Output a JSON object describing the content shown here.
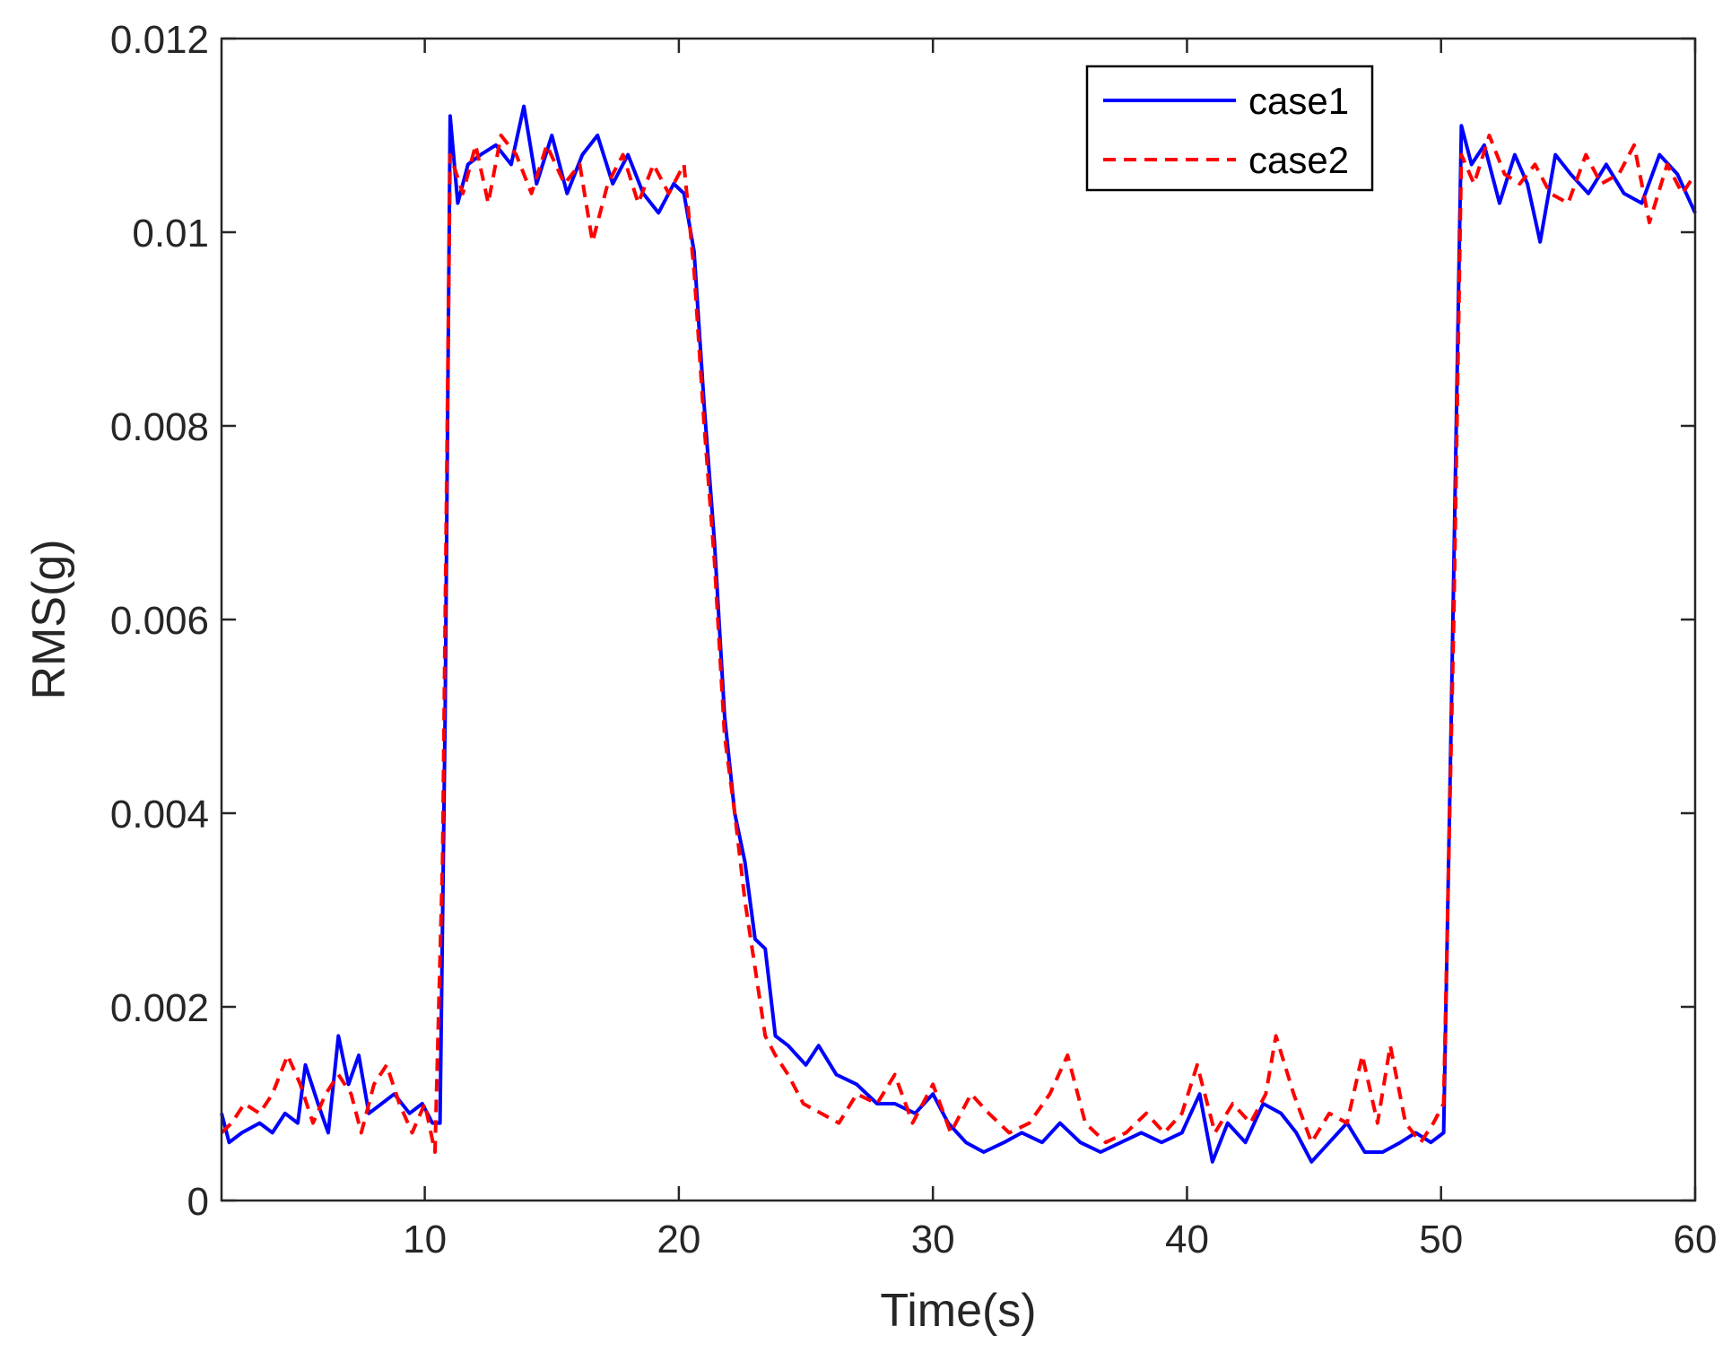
{
  "chart_data": {
    "type": "line",
    "title": "",
    "xlabel": "Time(s)",
    "ylabel": "RMS(g)",
    "xlim": [
      2,
      60
    ],
    "ylim": [
      0,
      0.012
    ],
    "xticks": [
      10,
      20,
      30,
      40,
      50,
      60
    ],
    "yticks": [
      0,
      0.002,
      0.004,
      0.006,
      0.008,
      0.01,
      0.012
    ],
    "xtick_labels": [
      "10",
      "20",
      "30",
      "40",
      "50",
      "60"
    ],
    "ytick_labels": [
      "0",
      "0.002",
      "0.004",
      "0.006",
      "0.008",
      "0.01",
      "0.012"
    ],
    "grid": false,
    "legend_position": "top-right",
    "series": [
      {
        "name": "case1",
        "color": "#0000ff",
        "style": "solid",
        "points": [
          [
            2.0,
            0.0009
          ],
          [
            2.3,
            0.0006
          ],
          [
            2.8,
            0.0007
          ],
          [
            3.5,
            0.0008
          ],
          [
            4.0,
            0.0007
          ],
          [
            4.5,
            0.0009
          ],
          [
            5.0,
            0.0008
          ],
          [
            5.3,
            0.0014
          ],
          [
            5.8,
            0.001
          ],
          [
            6.2,
            0.0007
          ],
          [
            6.6,
            0.0017
          ],
          [
            7.0,
            0.0012
          ],
          [
            7.4,
            0.0015
          ],
          [
            7.8,
            0.0009
          ],
          [
            8.3,
            0.001
          ],
          [
            8.8,
            0.0011
          ],
          [
            9.4,
            0.0009
          ],
          [
            9.9,
            0.001
          ],
          [
            10.3,
            0.0008
          ],
          [
            10.6,
            0.0008
          ],
          [
            10.8,
            0.005
          ],
          [
            11.0,
            0.0112
          ],
          [
            11.3,
            0.0103
          ],
          [
            11.7,
            0.0107
          ],
          [
            12.2,
            0.0108
          ],
          [
            12.8,
            0.0109
          ],
          [
            13.4,
            0.0107
          ],
          [
            13.9,
            0.0113
          ],
          [
            14.4,
            0.0105
          ],
          [
            15.0,
            0.011
          ],
          [
            15.6,
            0.0104
          ],
          [
            16.2,
            0.0108
          ],
          [
            16.8,
            0.011
          ],
          [
            17.4,
            0.0105
          ],
          [
            18.0,
            0.0108
          ],
          [
            18.6,
            0.0104
          ],
          [
            19.2,
            0.0102
          ],
          [
            19.8,
            0.0105
          ],
          [
            20.2,
            0.0104
          ],
          [
            20.6,
            0.0098
          ],
          [
            21.0,
            0.0082
          ],
          [
            21.4,
            0.0068
          ],
          [
            21.8,
            0.005
          ],
          [
            22.2,
            0.004
          ],
          [
            22.6,
            0.0035
          ],
          [
            23.0,
            0.0027
          ],
          [
            23.4,
            0.0026
          ],
          [
            23.8,
            0.0017
          ],
          [
            24.3,
            0.0016
          ],
          [
            25.0,
            0.0014
          ],
          [
            25.5,
            0.0016
          ],
          [
            26.2,
            0.0013
          ],
          [
            27.0,
            0.0012
          ],
          [
            27.8,
            0.001
          ],
          [
            28.5,
            0.001
          ],
          [
            29.3,
            0.0009
          ],
          [
            30.0,
            0.0011
          ],
          [
            30.6,
            0.0008
          ],
          [
            31.3,
            0.0006
          ],
          [
            32.0,
            0.0005
          ],
          [
            32.8,
            0.0006
          ],
          [
            33.5,
            0.0007
          ],
          [
            34.3,
            0.0006
          ],
          [
            35.0,
            0.0008
          ],
          [
            35.8,
            0.0006
          ],
          [
            36.6,
            0.0005
          ],
          [
            37.4,
            0.0006
          ],
          [
            38.2,
            0.0007
          ],
          [
            39.0,
            0.0006
          ],
          [
            39.8,
            0.0007
          ],
          [
            40.5,
            0.0011
          ],
          [
            41.0,
            0.0004
          ],
          [
            41.6,
            0.0008
          ],
          [
            42.3,
            0.0006
          ],
          [
            43.0,
            0.001
          ],
          [
            43.7,
            0.0009
          ],
          [
            44.3,
            0.0007
          ],
          [
            44.9,
            0.0004
          ],
          [
            45.6,
            0.0006
          ],
          [
            46.3,
            0.0008
          ],
          [
            47.0,
            0.0005
          ],
          [
            47.7,
            0.0005
          ],
          [
            48.4,
            0.0006
          ],
          [
            49.0,
            0.0007
          ],
          [
            49.6,
            0.0006
          ],
          [
            50.1,
            0.0007
          ],
          [
            50.4,
            0.005
          ],
          [
            50.8,
            0.0111
          ],
          [
            51.2,
            0.0107
          ],
          [
            51.7,
            0.0109
          ],
          [
            52.3,
            0.0103
          ],
          [
            52.9,
            0.0108
          ],
          [
            53.4,
            0.0105
          ],
          [
            53.9,
            0.0099
          ],
          [
            54.5,
            0.0108
          ],
          [
            55.1,
            0.0106
          ],
          [
            55.8,
            0.0104
          ],
          [
            56.5,
            0.0107
          ],
          [
            57.2,
            0.0104
          ],
          [
            57.9,
            0.0103
          ],
          [
            58.6,
            0.0108
          ],
          [
            59.3,
            0.0106
          ],
          [
            60.0,
            0.0102
          ]
        ]
      },
      {
        "name": "case2",
        "color": "#ff0000",
        "style": "dashed",
        "points": [
          [
            2.0,
            0.0007
          ],
          [
            2.4,
            0.0008
          ],
          [
            2.9,
            0.001
          ],
          [
            3.5,
            0.0009
          ],
          [
            4.0,
            0.0011
          ],
          [
            4.6,
            0.0015
          ],
          [
            5.1,
            0.0012
          ],
          [
            5.6,
            0.0008
          ],
          [
            6.1,
            0.0011
          ],
          [
            6.6,
            0.0013
          ],
          [
            7.1,
            0.0011
          ],
          [
            7.5,
            0.0007
          ],
          [
            8.0,
            0.0012
          ],
          [
            8.5,
            0.0014
          ],
          [
            9.0,
            0.001
          ],
          [
            9.5,
            0.0007
          ],
          [
            10.0,
            0.001
          ],
          [
            10.4,
            0.0005
          ],
          [
            10.7,
            0.0035
          ],
          [
            11.0,
            0.0108
          ],
          [
            11.5,
            0.0104
          ],
          [
            12.0,
            0.0109
          ],
          [
            12.5,
            0.0103
          ],
          [
            13.0,
            0.011
          ],
          [
            13.6,
            0.0108
          ],
          [
            14.2,
            0.0104
          ],
          [
            14.8,
            0.0109
          ],
          [
            15.5,
            0.0105
          ],
          [
            16.1,
            0.0107
          ],
          [
            16.6,
            0.0099
          ],
          [
            17.2,
            0.0105
          ],
          [
            17.8,
            0.0108
          ],
          [
            18.4,
            0.0103
          ],
          [
            19.0,
            0.0107
          ],
          [
            19.6,
            0.0104
          ],
          [
            20.2,
            0.0107
          ],
          [
            20.6,
            0.0096
          ],
          [
            21.0,
            0.008
          ],
          [
            21.4,
            0.0066
          ],
          [
            21.8,
            0.0048
          ],
          [
            22.2,
            0.004
          ],
          [
            22.6,
            0.0031
          ],
          [
            23.0,
            0.0024
          ],
          [
            23.4,
            0.0017
          ],
          [
            23.8,
            0.0015
          ],
          [
            24.3,
            0.0013
          ],
          [
            24.9,
            0.001
          ],
          [
            25.6,
            0.0009
          ],
          [
            26.3,
            0.0008
          ],
          [
            27.0,
            0.0011
          ],
          [
            27.8,
            0.001
          ],
          [
            28.5,
            0.0013
          ],
          [
            29.2,
            0.0008
          ],
          [
            30.0,
            0.0012
          ],
          [
            30.7,
            0.0007
          ],
          [
            31.5,
            0.0011
          ],
          [
            32.2,
            0.0009
          ],
          [
            33.0,
            0.0007
          ],
          [
            33.8,
            0.0008
          ],
          [
            34.6,
            0.0011
          ],
          [
            35.3,
            0.0015
          ],
          [
            36.0,
            0.0008
          ],
          [
            36.8,
            0.0006
          ],
          [
            37.6,
            0.0007
          ],
          [
            38.4,
            0.0009
          ],
          [
            39.1,
            0.0007
          ],
          [
            39.8,
            0.0009
          ],
          [
            40.4,
            0.0014
          ],
          [
            41.1,
            0.0007
          ],
          [
            41.8,
            0.001
          ],
          [
            42.5,
            0.0008
          ],
          [
            43.1,
            0.0011
          ],
          [
            43.5,
            0.0017
          ],
          [
            44.2,
            0.0011
          ],
          [
            44.9,
            0.0006
          ],
          [
            45.6,
            0.0009
          ],
          [
            46.3,
            0.0008
          ],
          [
            46.9,
            0.0015
          ],
          [
            47.5,
            0.0008
          ],
          [
            48.0,
            0.0016
          ],
          [
            48.6,
            0.0008
          ],
          [
            49.2,
            0.0006
          ],
          [
            49.7,
            0.0008
          ],
          [
            50.1,
            0.001
          ],
          [
            50.5,
            0.006
          ],
          [
            50.8,
            0.0108
          ],
          [
            51.3,
            0.0105
          ],
          [
            51.9,
            0.011
          ],
          [
            52.5,
            0.0106
          ],
          [
            53.1,
            0.0105
          ],
          [
            53.7,
            0.0107
          ],
          [
            54.3,
            0.0104
          ],
          [
            55.0,
            0.0103
          ],
          [
            55.7,
            0.0108
          ],
          [
            56.3,
            0.0105
          ],
          [
            57.0,
            0.0106
          ],
          [
            57.6,
            0.0109
          ],
          [
            58.2,
            0.0101
          ],
          [
            58.9,
            0.0107
          ],
          [
            59.5,
            0.0104
          ],
          [
            60.0,
            0.0106
          ]
        ]
      }
    ]
  }
}
